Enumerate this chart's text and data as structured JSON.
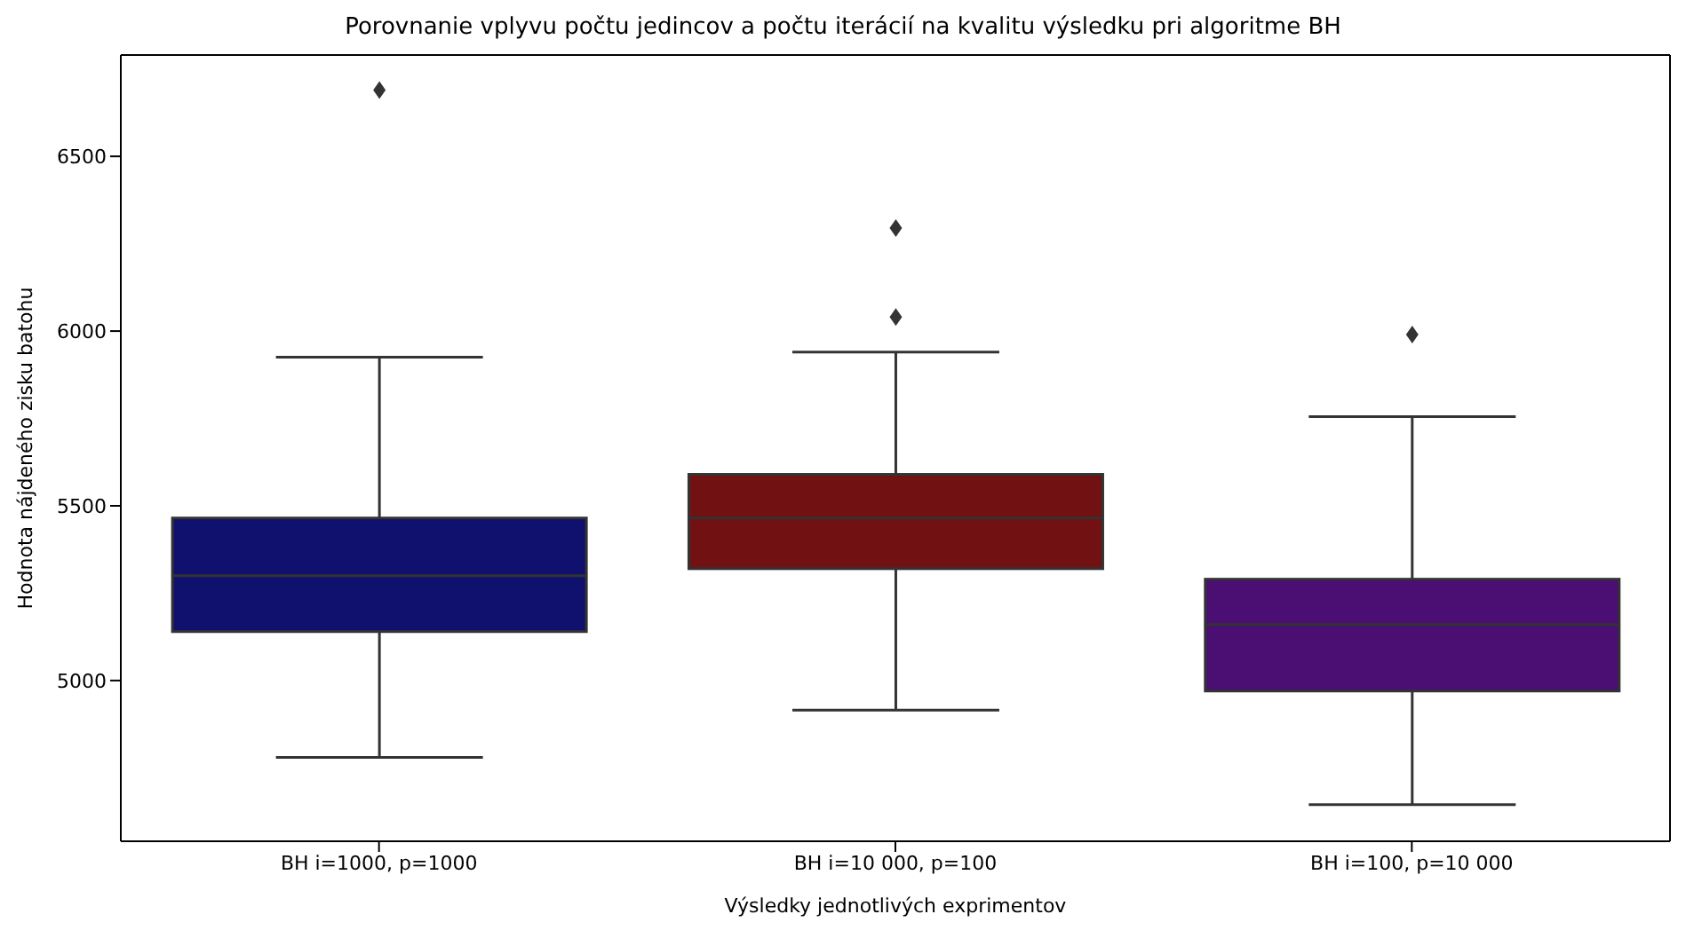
{
  "chart_data": {
    "type": "box",
    "title": "Porovnanie vplyvu počtu jedincov a počtu iterácií na kvalitu výsledku pri algoritme BH",
    "xlabel": "Výsledky jednotlivých exprimentov",
    "ylabel": "Hodnota nájdeného zisku batohu",
    "categories": [
      "BH i=1000, p=1000",
      "BH i=10 000, p=100",
      "BH i=100, p=10 000"
    ],
    "colors": [
      "#10106e",
      "#711111",
      "#4b0f73"
    ],
    "boxes": [
      {
        "low": 4780,
        "q1": 5140,
        "median": 5300,
        "q3": 5465,
        "high": 5925,
        "outliers": [
          6690
        ]
      },
      {
        "low": 4915,
        "q1": 5320,
        "median": 5465,
        "q3": 5590,
        "high": 5940,
        "outliers": [
          6295,
          6040
        ]
      },
      {
        "low": 4645,
        "q1": 4970,
        "median": 5160,
        "q3": 5290,
        "high": 5755,
        "outliers": [
          5990
        ]
      }
    ],
    "ylim": [
      4540,
      6790
    ],
    "yticks": [
      5000,
      5500,
      6000,
      6500
    ],
    "grid": false
  }
}
